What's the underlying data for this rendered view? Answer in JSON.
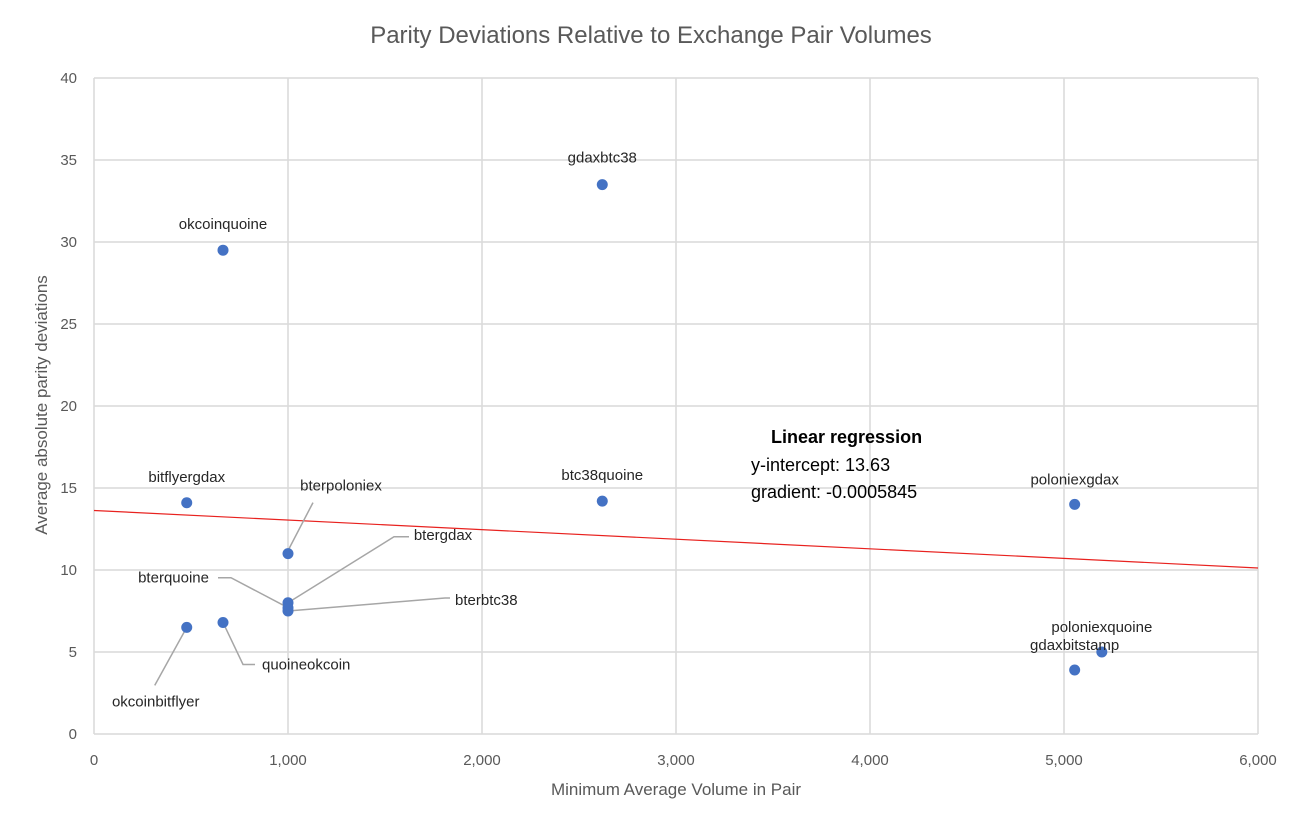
{
  "chart_data": {
    "type": "scatter",
    "title": "Parity Deviations Relative to Exchange Pair Volumes",
    "xlabel": "Minimum Average Volume in Pair",
    "ylabel": "Average absolute parity deviations",
    "xlim": [
      0,
      6000
    ],
    "ylim": [
      0,
      40
    ],
    "x_ticks": [
      0,
      1000,
      2000,
      3000,
      4000,
      5000,
      6000
    ],
    "x_tick_labels": [
      "0",
      "1,000",
      "2,000",
      "3,000",
      "4,000",
      "5,000",
      "6,000"
    ],
    "y_ticks": [
      0,
      5,
      10,
      15,
      20,
      25,
      30,
      35,
      40
    ],
    "y_tick_labels": [
      "0",
      "5",
      "10",
      "15",
      "20",
      "25",
      "30",
      "35",
      "40"
    ],
    "grid": true,
    "legend": "none",
    "colors": {
      "points": "#4472C4",
      "trendline": "#E8221F",
      "grid": "#D9D9D9",
      "leader": "#A6A6A6"
    },
    "points": [
      {
        "label": "gdaxbtc38",
        "x": 2620,
        "y": 33.5
      },
      {
        "label": "okcoinquoine",
        "x": 665,
        "y": 29.5
      },
      {
        "label": "bitflyergdax",
        "x": 478,
        "y": 14.1
      },
      {
        "label": "btc38quoine",
        "x": 2620,
        "y": 14.2
      },
      {
        "label": "poloniexgdax",
        "x": 5055,
        "y": 14.0
      },
      {
        "label": "bterpoloniex",
        "x": 1000,
        "y": 11.0
      },
      {
        "label": "btergdax",
        "x": 1000,
        "y": 8.0
      },
      {
        "label": "bterquoine",
        "x": 1000,
        "y": 7.7
      },
      {
        "label": "bterbtc38",
        "x": 1000,
        "y": 7.5
      },
      {
        "label": "quoineokcoin",
        "x": 665,
        "y": 6.8
      },
      {
        "label": "okcoinbitflyer",
        "x": 478,
        "y": 6.5
      },
      {
        "label": "poloniexquoine",
        "x": 5195,
        "y": 5.0
      },
      {
        "label": "gdaxbitstamp",
        "x": 5055,
        "y": 3.9
      }
    ],
    "trendline": {
      "type": "linear",
      "intercept": 13.63,
      "slope": -0.0005845
    },
    "annotation": {
      "heading": "Linear regression",
      "line1": "y-intercept: 13.63",
      "line2": "gradient: -0.0005845"
    }
  }
}
